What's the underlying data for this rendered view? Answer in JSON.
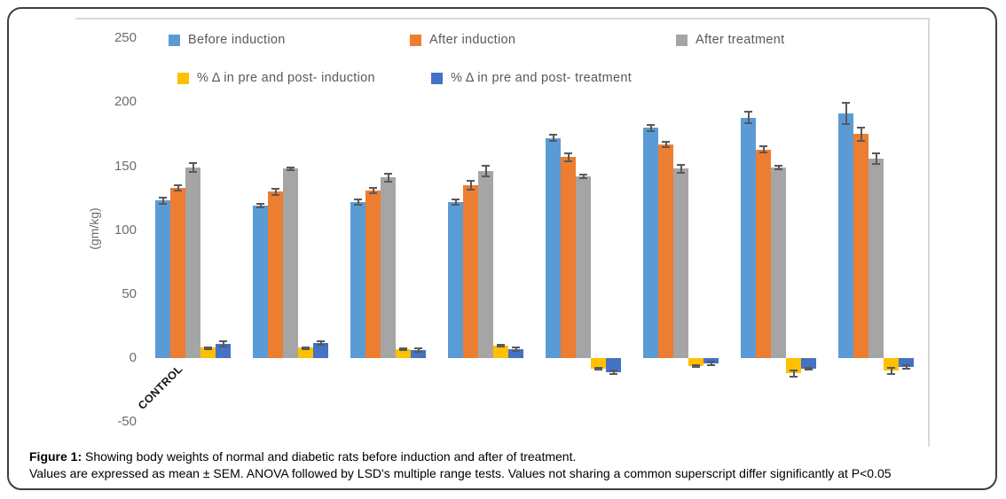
{
  "figure": {
    "caption_label": "Figure 1:",
    "caption_line1": " Showing body weights of normal and diabetic rats before induction and after of treatment.",
    "caption_line2": "Values are expressed as mean ± SEM. ANOVA followed by LSD's multiple range tests. Values not sharing a common superscript differ significantly at P<0.05"
  },
  "chart_data": {
    "type": "bar",
    "title": "",
    "xlabel": "",
    "ylabel": "(gm/kg)",
    "ylim": [
      -50,
      250
    ],
    "yticks": [
      250,
      200,
      150,
      100,
      50,
      0,
      -50
    ],
    "grid": false,
    "legend_position": "top",
    "error_bar_color": "#595959",
    "categories": [
      "CONTROL",
      "",
      "",
      "",
      "",
      "",
      "",
      ""
    ],
    "series": [
      {
        "name": "Before induction",
        "color": "#5b9bd5",
        "values": [
          123,
          119,
          122,
          122,
          172,
          180,
          188,
          191
        ],
        "errors": [
          3,
          2,
          3,
          3,
          3,
          3,
          5,
          9
        ]
      },
      {
        "name": "After induction",
        "color": "#ed7d31",
        "values": [
          133,
          130,
          131,
          135,
          157,
          167,
          163,
          175
        ],
        "errors": [
          3,
          3,
          3,
          4,
          4,
          3,
          3,
          6
        ]
      },
      {
        "name": "After treatment",
        "color": "#a5a5a5",
        "values": [
          149,
          148,
          141,
          146,
          142,
          148,
          149,
          156
        ],
        "errors": [
          4,
          2,
          4,
          5,
          2,
          4,
          2,
          5
        ]
      },
      {
        "name": "% Δ in pre and post- induction",
        "color": "#ffc000",
        "values": [
          8,
          8,
          7,
          10,
          -8,
          -6,
          -12,
          -10
        ],
        "errors": [
          1,
          1,
          1,
          1,
          1,
          1,
          3,
          3
        ]
      },
      {
        "name": "% Δ in pre and post- treatment",
        "color": "#4472c4",
        "values": [
          11,
          12,
          6,
          7,
          -11,
          -4,
          -8,
          -7
        ],
        "errors": [
          3,
          2,
          2,
          2,
          2,
          2,
          1,
          2
        ]
      }
    ]
  }
}
